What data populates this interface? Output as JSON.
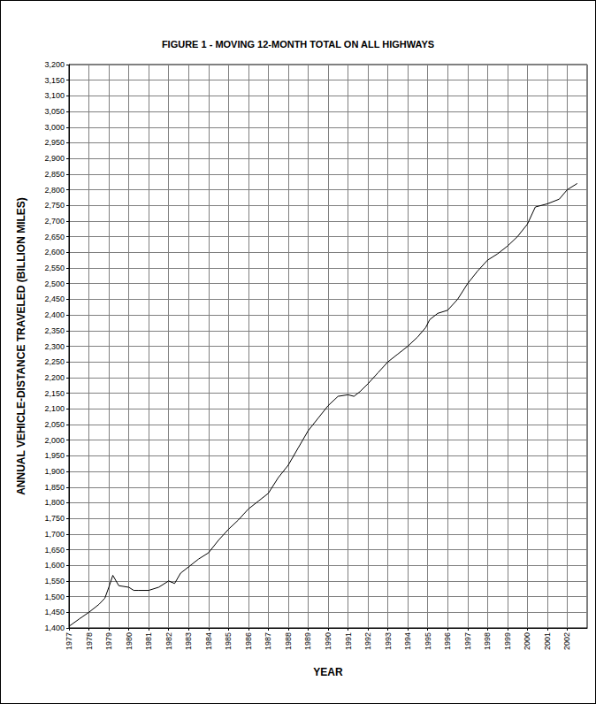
{
  "chart_data": {
    "type": "line",
    "title": "FIGURE 1 - MOVING 12-MONTH TOTAL ON ALL HIGHWAYS",
    "x_label": "YEAR",
    "y_label": "ANNUAL VEHICLE-DISTANCE TRAVELED (BILLION MILES)",
    "x": [
      1977,
      1977.5,
      1978,
      1978.5,
      1978.8,
      1979,
      1979.2,
      1979.5,
      1980,
      1980.25,
      1980.5,
      1981,
      1981.5,
      1982,
      1982.3,
      1982.6,
      1983,
      1983.5,
      1984,
      1984.5,
      1985,
      1985.5,
      1986,
      1986.5,
      1987,
      1987.5,
      1988,
      1988.5,
      1989,
      1989.5,
      1990,
      1990.5,
      1991,
      1991.3,
      1991.6,
      1992,
      1992.5,
      1993,
      1993.5,
      1994,
      1994.5,
      1994.9,
      1995.1,
      1995.5,
      1996,
      1996.5,
      1997,
      1997.5,
      1998,
      1998.5,
      1999,
      1999.5,
      2000,
      2000.4,
      2001,
      2001.6,
      2002,
      2002.5
    ],
    "values": [
      1405,
      1428,
      1450,
      1475,
      1495,
      1530,
      1568,
      1535,
      1530,
      1520,
      1520,
      1520,
      1530,
      1550,
      1542,
      1575,
      1595,
      1620,
      1640,
      1680,
      1715,
      1745,
      1780,
      1805,
      1830,
      1880,
      1920,
      1975,
      2030,
      2070,
      2110,
      2140,
      2145,
      2140,
      2155,
      2180,
      2215,
      2250,
      2275,
      2300,
      2330,
      2360,
      2385,
      2405,
      2415,
      2450,
      2500,
      2540,
      2575,
      2595,
      2620,
      2650,
      2690,
      2745,
      2755,
      2770,
      2800,
      2820
    ],
    "color": "#000000",
    "xlim": [
      1977,
      2003
    ],
    "xticks": [
      1977,
      1978,
      1979,
      1980,
      1981,
      1982,
      1983,
      1984,
      1985,
      1986,
      1987,
      1988,
      1989,
      1990,
      1991,
      1992,
      1993,
      1994,
      1995,
      1996,
      1997,
      1998,
      1999,
      2000,
      2001,
      2002
    ],
    "ylim": [
      1400,
      3200
    ],
    "yticks": [
      {
        "value": 1400,
        "label": "1,400"
      },
      {
        "value": 1450,
        "label": "1,450"
      },
      {
        "value": 1500,
        "label": "1,500"
      },
      {
        "value": 1550,
        "label": "1,550"
      },
      {
        "value": 1600,
        "label": "1,600"
      },
      {
        "value": 1650,
        "label": "1,650"
      },
      {
        "value": 1700,
        "label": "1,700"
      },
      {
        "value": 1750,
        "label": "1,750"
      },
      {
        "value": 1800,
        "label": "1,800"
      },
      {
        "value": 1850,
        "label": "1,850"
      },
      {
        "value": 1900,
        "label": "1,900"
      },
      {
        "value": 1950,
        "label": "1,950"
      },
      {
        "value": 2000,
        "label": "2,000"
      },
      {
        "value": 2050,
        "label": "2,050"
      },
      {
        "value": 2100,
        "label": "2,100"
      },
      {
        "value": 2150,
        "label": "2,150"
      },
      {
        "value": 2200,
        "label": "2,200"
      },
      {
        "value": 2250,
        "label": "2,250"
      },
      {
        "value": 2300,
        "label": "2,300"
      },
      {
        "value": 2350,
        "label": "2,350"
      },
      {
        "value": 2400,
        "label": "2,400"
      },
      {
        "value": 2450,
        "label": "2,450"
      },
      {
        "value": 2500,
        "label": "2,500"
      },
      {
        "value": 2550,
        "label": "2,550"
      },
      {
        "value": 2600,
        "label": "2,600"
      },
      {
        "value": 2650,
        "label": "2,650"
      },
      {
        "value": 2700,
        "label": "2,700"
      },
      {
        "value": 2750,
        "label": "2,750"
      },
      {
        "value": 2800,
        "label": "2,800"
      },
      {
        "value": 2850,
        "label": "2,850"
      },
      {
        "value": 2900,
        "label": "2,900"
      },
      {
        "value": 2950,
        "label": "2,950"
      },
      {
        "value": 3000,
        "label": "3,000"
      },
      {
        "value": 3050,
        "label": "3,050"
      },
      {
        "value": 3100,
        "label": "3,100"
      },
      {
        "value": 3150,
        "label": "3,150"
      },
      {
        "value": 3200,
        "label": "3,200"
      }
    ],
    "grid": true
  }
}
